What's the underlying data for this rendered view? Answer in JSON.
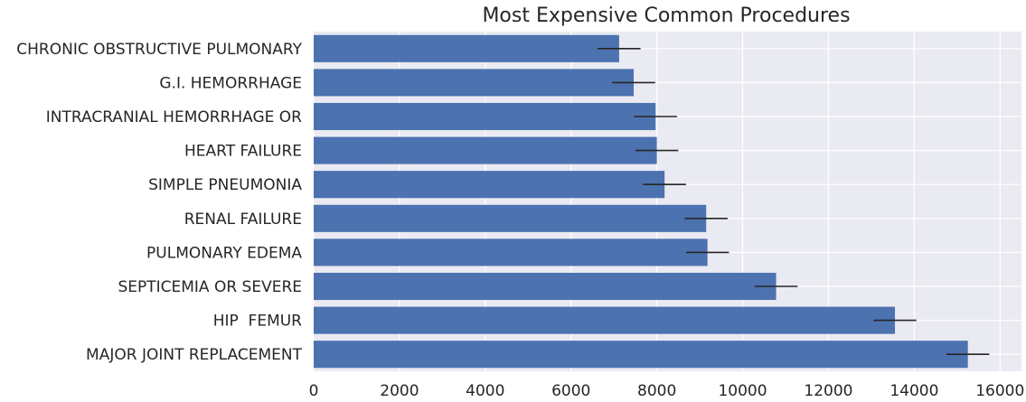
{
  "chart_data": {
    "type": "bar",
    "orientation": "horizontal",
    "title": "Most Expensive Common Procedures",
    "xlabel": "",
    "ylabel": "",
    "xlim": [
      0,
      16500
    ],
    "xticks": [
      0,
      2000,
      4000,
      6000,
      8000,
      10000,
      12000,
      14000,
      16000
    ],
    "grid": true,
    "categories": [
      "MAJOR JOINT REPLACEMENT",
      "HIP  FEMUR",
      "SEPTICEMIA OR SEVERE",
      "PULMONARY EDEMA",
      "RENAL FAILURE",
      "SIMPLE PNEUMONIA",
      "HEART FAILURE",
      "INTRACRANIAL HEMORRHAGE OR",
      "G.I. HEMORRHAGE",
      "CHRONIC OBSTRUCTIVE PULMONARY"
    ],
    "values": [
      15250,
      13550,
      10780,
      9180,
      9150,
      8180,
      8000,
      7970,
      7460,
      7120
    ],
    "errors": [
      500,
      500,
      500,
      500,
      500,
      500,
      500,
      500,
      500,
      500
    ],
    "colors": {
      "bar": "#4c72b0",
      "background": "#eaeaf2",
      "grid": "#ffffff",
      "errorbar": "#262626"
    }
  }
}
